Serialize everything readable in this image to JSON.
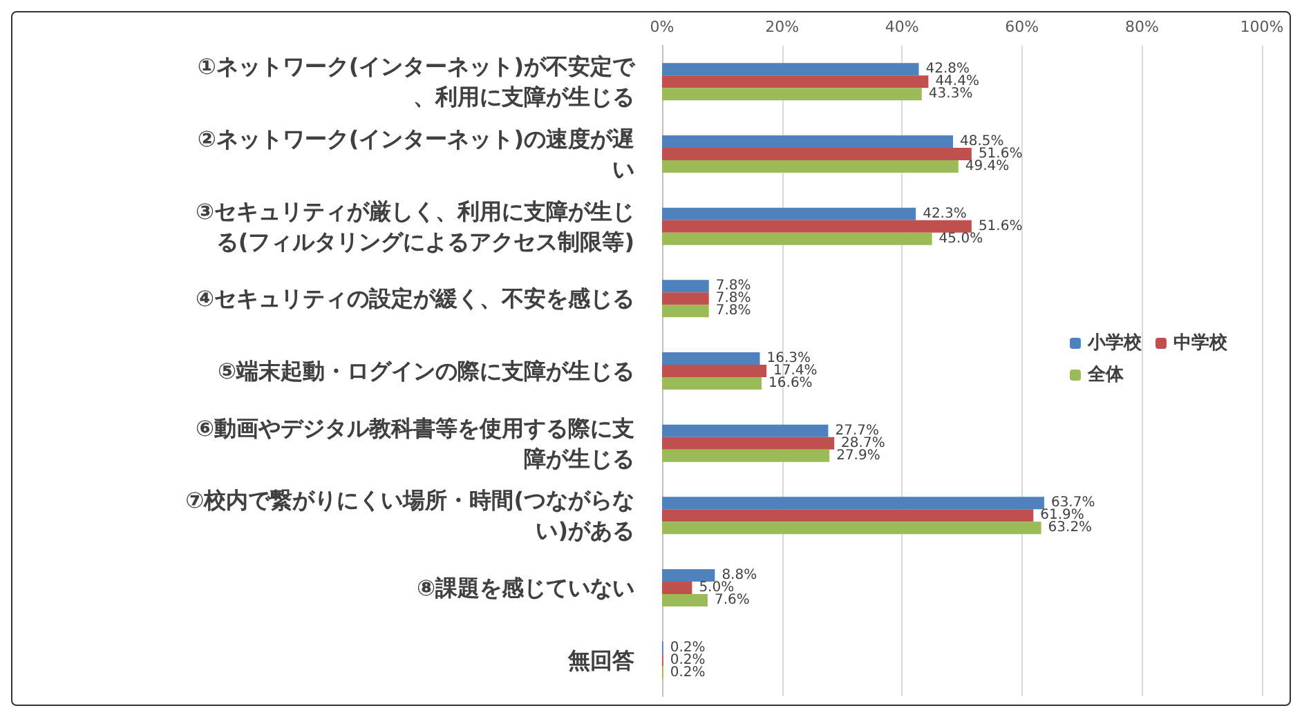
{
  "chart_data": {
    "type": "bar",
    "orientation": "horizontal",
    "categories": [
      "①ネットワーク(インターネット)が不安定で、利用に支障が生じる",
      "②ネットワーク(インターネット)の速度が遅い",
      "③セキュリティが厳しく、利用に支障が生じる(フィルタリングによるアクセス制限等)",
      "④セキュリティの設定が緩く、不安を感じる",
      "⑤端末起動・ログインの際に支障が生じる",
      "⑥動画やデジタル教科書等を使用する際に支障が生じる",
      "⑦校内で繋がりにくい場所・時間(つながらない)がある",
      "⑧課題を感じていない",
      "無回答"
    ],
    "series": [
      {
        "name": "小学校",
        "color": "#4f81bd",
        "values": [
          42.8,
          48.5,
          42.3,
          7.8,
          16.3,
          27.7,
          63.7,
          8.8,
          0.2
        ],
        "value_labels": [
          "42.8%",
          "48.5%",
          "42.3%",
          "7.8%",
          "16.3%",
          "27.7%",
          "63.7%",
          "8.8%",
          "0.2%"
        ]
      },
      {
        "name": "中学校",
        "color": "#c0504d",
        "values": [
          44.4,
          51.6,
          51.6,
          7.8,
          17.4,
          28.7,
          61.9,
          5.0,
          0.2
        ],
        "value_labels": [
          "44.4%",
          "51.6%",
          "51.6%",
          "7.8%",
          "17.4%",
          "28.7%",
          "61.9%",
          "5.0%",
          "0.2%"
        ]
      },
      {
        "name": "全体",
        "color": "#9bbb59",
        "values": [
          43.3,
          49.4,
          45.0,
          7.8,
          16.6,
          27.9,
          63.2,
          7.6,
          0.2
        ],
        "value_labels": [
          "43.3%",
          "49.4%",
          "45.0%",
          "7.8%",
          "16.6%",
          "27.9%",
          "63.2%",
          "7.6%",
          "0.2%"
        ]
      }
    ],
    "xlim": [
      0,
      100
    ],
    "xticks": [
      {
        "value": 0,
        "label": "0%"
      },
      {
        "value": 20,
        "label": "20%"
      },
      {
        "value": 40,
        "label": "40%"
      },
      {
        "value": 60,
        "label": "60%"
      },
      {
        "value": 80,
        "label": "80%"
      },
      {
        "value": 100,
        "label": "100%"
      }
    ],
    "grid": "x",
    "legend": "right"
  }
}
